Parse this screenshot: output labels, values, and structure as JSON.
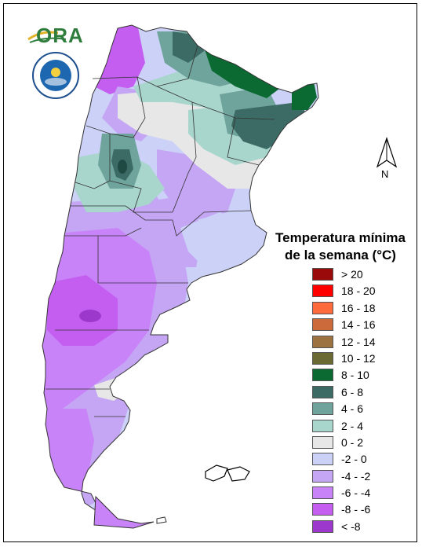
{
  "logo": {
    "ora_text": "ORA"
  },
  "north_label": "N",
  "legend": {
    "title_line1": "Temperatura mínima",
    "title_line2": "de la semana (°C)",
    "items": [
      {
        "label": "> 20",
        "color": "#9b0a0a"
      },
      {
        "label": "18 - 20",
        "color": "#ff0000"
      },
      {
        "label": "16 - 18",
        "color": "#ff6a3d"
      },
      {
        "label": "14 - 16",
        "color": "#cd6a3b"
      },
      {
        "label": "12 - 14",
        "color": "#9c7240"
      },
      {
        "label": "10 - 12",
        "color": "#6b6a35"
      },
      {
        "label": "8 - 10",
        "color": "#0a6a32"
      },
      {
        "label": "6 - 8",
        "color": "#3b6b64"
      },
      {
        "label": "4 - 6",
        "color": "#6fa49c"
      },
      {
        "label": "2 - 4",
        "color": "#a8d5cc"
      },
      {
        "label": "0 - 2",
        "color": "#e7e7e7"
      },
      {
        "label": "-2 - 0",
        "color": "#cbd1f7"
      },
      {
        "label": "-4 - -2",
        "color": "#c5a6f4"
      },
      {
        "label": "-6 - -4",
        "color": "#c983f8"
      },
      {
        "label": "-8 - -6",
        "color": "#c45ef1"
      },
      {
        "label": "< -8",
        "color": "#9d38cd"
      }
    ]
  }
}
